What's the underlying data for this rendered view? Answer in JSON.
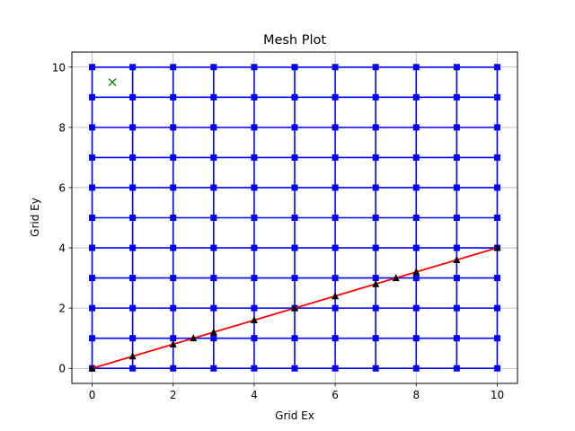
{
  "chart_data": {
    "type": "line",
    "title": "Mesh Plot",
    "xlabel": "Grid Ex",
    "ylabel": "Grid Ey",
    "xlim": [
      -0.5,
      10.5
    ],
    "ylim": [
      -0.5,
      10.5
    ],
    "xticks": [
      0,
      2,
      4,
      6,
      8,
      10
    ],
    "yticks": [
      0,
      2,
      4,
      6,
      8,
      10
    ],
    "grid": true,
    "series": [
      {
        "kind": "mesh",
        "color": "#0000ff",
        "marker": "square",
        "x": [
          0,
          1,
          2,
          3,
          4,
          5,
          6,
          7,
          8,
          9,
          10
        ],
        "y": [
          0,
          1,
          2,
          3,
          4,
          5,
          6,
          7,
          8,
          9,
          10
        ]
      },
      {
        "kind": "line",
        "color": "#ff0000",
        "x": [
          0,
          10
        ],
        "y": [
          0,
          4
        ]
      },
      {
        "kind": "markers",
        "color": "#000000",
        "marker": "triangle",
        "x": [
          0,
          1,
          2,
          2.5,
          3,
          4,
          5,
          6,
          7,
          7.5,
          8,
          9,
          10
        ],
        "y": [
          0,
          0.4,
          0.8,
          1.0,
          1.2,
          1.6,
          2.0,
          2.4,
          2.8,
          3.0,
          3.2,
          3.6,
          4.0
        ]
      },
      {
        "kind": "markers",
        "color": "#008000",
        "marker": "x",
        "x": [
          0.5
        ],
        "y": [
          9.5
        ]
      }
    ]
  }
}
